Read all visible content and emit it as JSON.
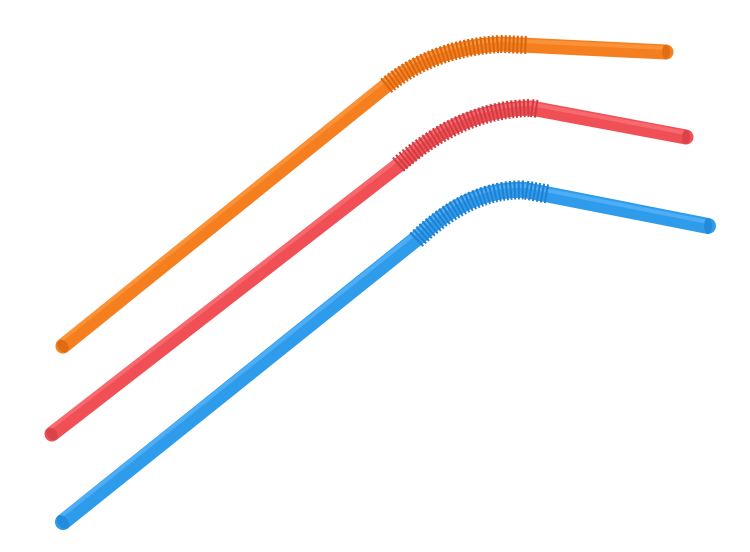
{
  "scene": {
    "background": "#ffffff",
    "objects": [
      {
        "name": "orange-straw",
        "color": "#f57f1f",
        "highlight": "#ffa24a",
        "shadow": "#d8660f",
        "end": "#e06d15"
      },
      {
        "name": "red-straw",
        "color": "#f05055",
        "highlight": "#ff7d82",
        "shadow": "#cf3c42",
        "end": "#da4349"
      },
      {
        "name": "blue-straw",
        "color": "#2f9ceb",
        "highlight": "#66bcff",
        "shadow": "#1f7fd0",
        "end": "#238bdc"
      }
    ]
  }
}
